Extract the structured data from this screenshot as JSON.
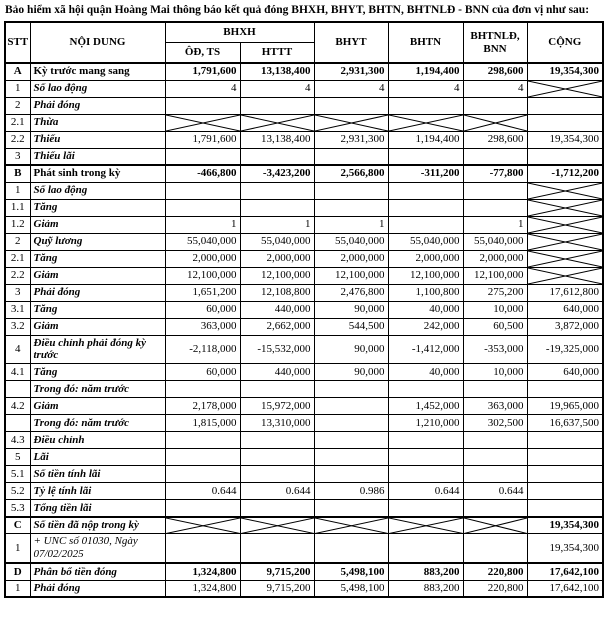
{
  "title": "Bảo hiểm xã hội quận Hoàng Mai thông báo kết quả đóng BHXH, BHYT, BHTN, BHTNLĐ - BNN của đơn vị như sau:",
  "table": {
    "headers": {
      "stt": "STT",
      "noi_dung": "NỘI DUNG",
      "bhxh_group": "BHXH",
      "bhxh_sub1": "ÔĐ, TS",
      "bhxh_sub2": "HTTT",
      "bhyt": "BHYT",
      "bhtn": "BHTN",
      "bhtnld": "BHTNLĐ, BNN",
      "cong": "CỘNG"
    },
    "crossed_cell_token": "X",
    "rows": [
      {
        "kind": "section",
        "stt": "A",
        "label": "Kỳ trước mang sang",
        "cells": [
          "1,791,600",
          "13,138,400",
          "2,931,300",
          "1,194,400",
          "298,600",
          "19,354,300"
        ]
      },
      {
        "kind": "item",
        "stt": "1",
        "label": "Số lao động",
        "cells": [
          "4",
          "4",
          "4",
          "4",
          "4",
          "X"
        ]
      },
      {
        "kind": "item",
        "stt": "2",
        "label": "Phải đóng",
        "cells": [
          "",
          "",
          "",
          "",
          "",
          ""
        ]
      },
      {
        "kind": "item",
        "stt": "2.1",
        "label": "Thừa",
        "cells": [
          "X",
          "X",
          "X",
          "X",
          "X",
          ""
        ]
      },
      {
        "kind": "item",
        "stt": "2.2",
        "label": "Thiếu",
        "cells": [
          "1,791,600",
          "13,138,400",
          "2,931,300",
          "1,194,400",
          "298,600",
          "19,354,300"
        ]
      },
      {
        "kind": "item",
        "stt": "3",
        "label": "Thiếu lãi",
        "cells": [
          "",
          "",
          "",
          "",
          "",
          ""
        ]
      },
      {
        "kind": "section",
        "stt": "B",
        "label": "Phát sinh trong kỳ",
        "cells": [
          "-466,800",
          "-3,423,200",
          "2,566,800",
          "-311,200",
          "-77,800",
          "-1,712,200"
        ]
      },
      {
        "kind": "item",
        "stt": "1",
        "label": "Số lao động",
        "cells": [
          "",
          "",
          "",
          "",
          "",
          "X"
        ]
      },
      {
        "kind": "item",
        "stt": "1.1",
        "label": "Tăng",
        "cells": [
          "",
          "",
          "",
          "",
          "",
          "X"
        ]
      },
      {
        "kind": "item",
        "stt": "1.2",
        "label": "Giảm",
        "cells": [
          "1",
          "1",
          "1",
          "",
          "1",
          "X"
        ]
      },
      {
        "kind": "item",
        "stt": "2",
        "label": "Quỹ lương",
        "cells": [
          "55,040,000",
          "55,040,000",
          "55,040,000",
          "55,040,000",
          "55,040,000",
          "X"
        ]
      },
      {
        "kind": "item",
        "stt": "2.1",
        "label": "Tăng",
        "cells": [
          "2,000,000",
          "2,000,000",
          "2,000,000",
          "2,000,000",
          "2,000,000",
          "X"
        ]
      },
      {
        "kind": "item",
        "stt": "2.2",
        "label": "Giảm",
        "cells": [
          "12,100,000",
          "12,100,000",
          "12,100,000",
          "12,100,000",
          "12,100,000",
          "X"
        ]
      },
      {
        "kind": "item",
        "stt": "3",
        "label": "Phải đóng",
        "cells": [
          "1,651,200",
          "12,108,800",
          "2,476,800",
          "1,100,800",
          "275,200",
          "17,612,800"
        ]
      },
      {
        "kind": "item",
        "stt": "3.1",
        "label": "Tăng",
        "cells": [
          "60,000",
          "440,000",
          "90,000",
          "40,000",
          "10,000",
          "640,000"
        ]
      },
      {
        "kind": "item",
        "stt": "3.2",
        "label": "Giảm",
        "cells": [
          "363,000",
          "2,662,000",
          "544,500",
          "242,000",
          "60,500",
          "3,872,000"
        ]
      },
      {
        "kind": "item",
        "stt": "4",
        "label": "Điều chỉnh phải đóng kỳ trước",
        "cells": [
          "-2,118,000",
          "-15,532,000",
          "90,000",
          "-1,412,000",
          "-353,000",
          "-19,325,000"
        ]
      },
      {
        "kind": "item",
        "stt": "4.1",
        "label": "Tăng",
        "cells": [
          "60,000",
          "440,000",
          "90,000",
          "40,000",
          "10,000",
          "640,000"
        ]
      },
      {
        "kind": "item",
        "stt": "",
        "label": "Trong đó: năm trước",
        "cells": [
          "",
          "",
          "",
          "",
          "",
          ""
        ]
      },
      {
        "kind": "item",
        "stt": "4.2",
        "label": "Giảm",
        "cells": [
          "2,178,000",
          "15,972,000",
          "",
          "1,452,000",
          "363,000",
          "19,965,000"
        ]
      },
      {
        "kind": "item",
        "stt": "",
        "label": "Trong đó: năm trước",
        "cells": [
          "1,815,000",
          "13,310,000",
          "",
          "1,210,000",
          "302,500",
          "16,637,500"
        ]
      },
      {
        "kind": "item",
        "stt": "4.3",
        "label": "Điều chỉnh",
        "cells": [
          "",
          "",
          "",
          "",
          "",
          ""
        ]
      },
      {
        "kind": "item",
        "stt": "5",
        "label": "Lãi",
        "cells": [
          "",
          "",
          "",
          "",
          "",
          ""
        ]
      },
      {
        "kind": "item",
        "stt": "5.1",
        "label": "Số tiền tính lãi",
        "cells": [
          "",
          "",
          "",
          "",
          "",
          ""
        ]
      },
      {
        "kind": "item",
        "stt": "5.2",
        "label": "Tỷ lệ tính lãi",
        "cells": [
          "0.644",
          "0.644",
          "0.986",
          "0.644",
          "0.644",
          ""
        ]
      },
      {
        "kind": "item",
        "stt": "5.3",
        "label": "Tổng tiền lãi",
        "cells": [
          "",
          "",
          "",
          "",
          "",
          ""
        ]
      },
      {
        "kind": "sectionItalic",
        "stt": "C",
        "label": "Số tiền đã nộp trong kỳ",
        "cells": [
          "X",
          "X",
          "X",
          "X",
          "X",
          "19,354,300"
        ]
      },
      {
        "kind": "note",
        "stt": "1",
        "label": "+ UNC số 01030, Ngày 07/02/2025",
        "cells": [
          "",
          "",
          "",
          "",
          "",
          "19,354,300"
        ]
      },
      {
        "kind": "sectionItalic",
        "stt": "D",
        "label": "Phân bổ tiền đóng",
        "cells": [
          "1,324,800",
          "9,715,200",
          "5,498,100",
          "883,200",
          "220,800",
          "17,642,100"
        ]
      },
      {
        "kind": "item",
        "stt": "1",
        "label": "Phải đóng",
        "cells": [
          "1,324,800",
          "9,715,200",
          "5,498,100",
          "883,200",
          "220,800",
          "17,642,100"
        ]
      }
    ]
  }
}
